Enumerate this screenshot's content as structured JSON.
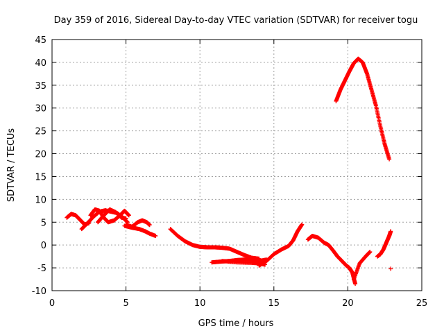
{
  "chart_data": {
    "type": "scatter",
    "title": "Day 359 of 2016, Sidereal Day-to-day VTEC variation (SDTVAR) for receiver togu",
    "xlabel": "GPS time / hours",
    "ylabel": "SDTVAR / TECUs",
    "xlim": [
      0,
      25
    ],
    "ylim": [
      -10,
      45
    ],
    "xticks": [
      0,
      5,
      10,
      15,
      20,
      25
    ],
    "yticks": [
      -10,
      -5,
      0,
      5,
      10,
      15,
      20,
      25,
      30,
      35,
      40,
      45
    ],
    "grid": true,
    "marker": "+",
    "color": "#ff0000",
    "series": [
      {
        "x": [
          1.0,
          1.3,
          1.6,
          1.9,
          2.2,
          2.5
        ],
        "y": [
          6.0,
          6.8,
          6.5,
          5.5,
          4.5,
          4.8
        ]
      },
      {
        "x": [
          2.0,
          2.4,
          2.8,
          3.2,
          3.6,
          4.0,
          4.4,
          4.8,
          5.1
        ],
        "y": [
          3.5,
          4.8,
          6.2,
          7.3,
          7.6,
          7.3,
          7.0,
          6.0,
          5.0
        ]
      },
      {
        "x": [
          2.6,
          2.9,
          3.2,
          3.5,
          3.8,
          4.2,
          4.6,
          4.9,
          5.2
        ],
        "y": [
          6.5,
          7.8,
          7.5,
          6.0,
          5.0,
          5.4,
          6.5,
          7.5,
          6.5
        ]
      },
      {
        "x": [
          3.1,
          3.5,
          3.9,
          4.3,
          4.7,
          5.0
        ],
        "y": [
          5.0,
          6.5,
          7.8,
          7.2,
          6.0,
          5.8
        ]
      },
      {
        "x": [
          4.9,
          5.4,
          5.9,
          6.3,
          6.6,
          7.0
        ],
        "y": [
          4.2,
          3.8,
          3.5,
          3.0,
          2.5,
          2.0
        ]
      },
      {
        "x": [
          5.0,
          5.4,
          5.8,
          6.1,
          6.4,
          6.6
        ],
        "y": [
          4.5,
          4.0,
          5.0,
          5.4,
          5.0,
          4.4
        ]
      },
      {
        "x": [
          8.0,
          8.5,
          9.0,
          9.5,
          10.0,
          10.5,
          11.0,
          11.5,
          12.0,
          12.5,
          13.0,
          13.5,
          14.0
        ],
        "y": [
          3.5,
          2.0,
          0.8,
          0.0,
          -0.4,
          -0.5,
          -0.5,
          -0.6,
          -0.8,
          -1.5,
          -2.2,
          -2.8,
          -3.0
        ]
      },
      {
        "x": [
          10.8,
          11.5,
          12.0,
          12.5,
          13.0,
          13.5,
          14.0,
          14.5
        ],
        "y": [
          -3.8,
          -3.6,
          -3.5,
          -3.3,
          -3.2,
          -3.3,
          -3.5,
          -3.2
        ]
      },
      {
        "x": [
          14.0,
          14.5,
          15.0,
          15.5,
          16.0,
          16.3,
          16.6,
          16.9
        ],
        "y": [
          -4.5,
          -3.5,
          -2.0,
          -1.0,
          -0.2,
          1.0,
          3.0,
          4.5
        ]
      },
      {
        "x": [
          11.5,
          12.5,
          13.5,
          14.0,
          14.4
        ],
        "y": [
          -3.5,
          -3.8,
          -3.9,
          -4.0,
          -4.3
        ]
      },
      {
        "x": [
          17.3,
          17.6,
          18.0,
          18.4,
          18.7,
          19.0,
          19.3,
          19.6,
          19.9,
          20.1,
          20.3,
          20.5
        ],
        "y": [
          1.2,
          2.0,
          1.6,
          0.5,
          0.0,
          -1.2,
          -2.5,
          -3.5,
          -4.5,
          -5.0,
          -6.0,
          -8.5
        ]
      },
      {
        "x": [
          20.4,
          20.8,
          21.2,
          21.5
        ],
        "y": [
          -7.5,
          -4.0,
          -2.5,
          -1.5
        ]
      },
      {
        "x": [
          22.0,
          22.2,
          22.4,
          22.6,
          22.8,
          22.9
        ],
        "y": [
          -2.5,
          -2.0,
          -1.0,
          0.5,
          2.0,
          3.0
        ]
      },
      {
        "x": [
          19.2,
          19.5,
          19.8,
          20.1,
          20.4,
          20.7,
          21.0,
          21.3,
          21.6,
          21.9,
          22.2,
          22.5,
          22.8
        ],
        "y": [
          31.5,
          34.0,
          36.0,
          38.0,
          39.8,
          40.8,
          40.0,
          37.5,
          34.0,
          30.5,
          26.0,
          22.0,
          18.8
        ]
      },
      {
        "x": [
          22.9
        ],
        "y": [
          -5.2
        ]
      }
    ]
  }
}
